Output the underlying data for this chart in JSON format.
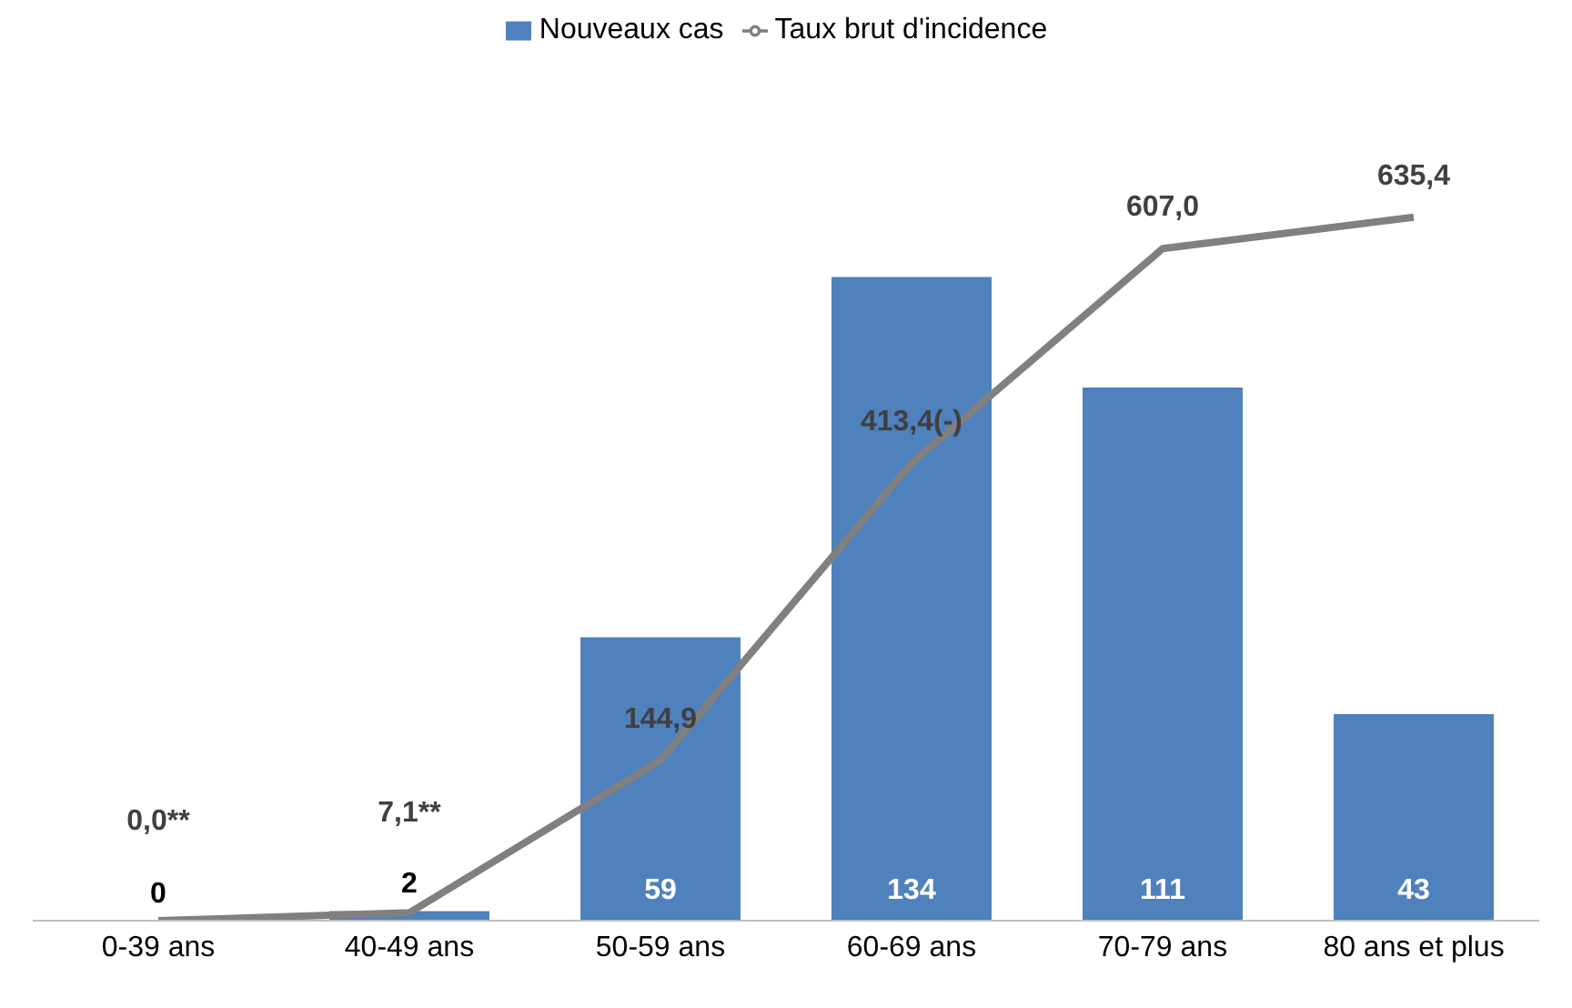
{
  "chart_data": {
    "type": "bar",
    "categories": [
      "0-39 ans",
      "40-49 ans",
      "50-59 ans",
      "60-69 ans",
      "70-79 ans",
      "80 ans et plus"
    ],
    "series": [
      {
        "name": "Nouveaux cas",
        "color": "#4f81bd",
        "values": [
          0,
          2,
          59,
          134,
          111,
          43
        ],
        "value_labels": [
          "0",
          "2",
          "59",
          "134",
          "111",
          "43"
        ]
      },
      {
        "name": "Taux brut d'incidence",
        "type": "line",
        "axis": "y2",
        "color": "#808080",
        "marker": "none",
        "values": [
          0.0,
          7.1,
          144.9,
          413.4,
          607.0,
          635.4
        ],
        "value_labels": [
          "0,0**",
          "7,1**",
          "144,9",
          "413,4(-)",
          "607,0",
          "635,4"
        ]
      }
    ],
    "legend": "top",
    "grid": false,
    "tick_labels": "x"
  }
}
